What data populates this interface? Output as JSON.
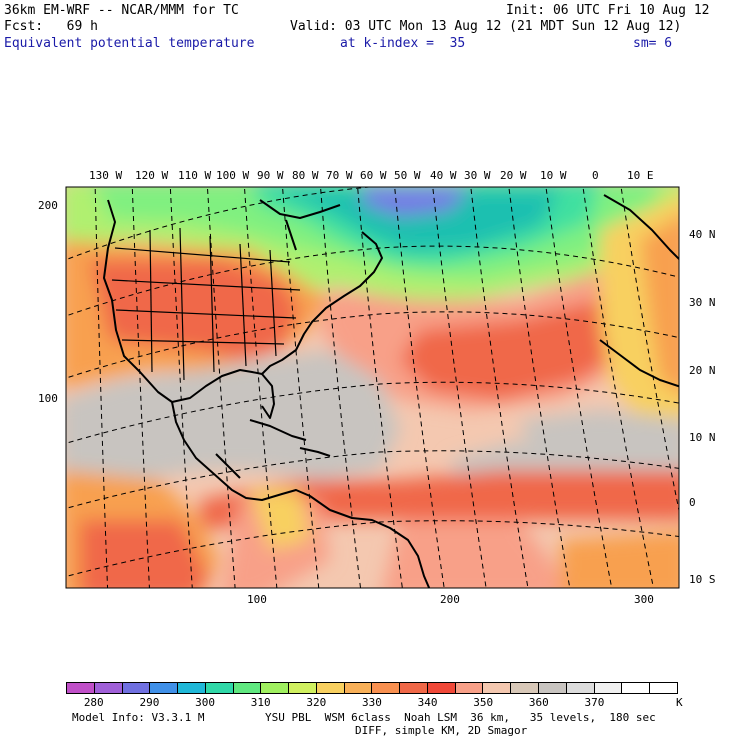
{
  "header": {
    "model": "36km EM-WRF -- NCAR/MMM for TC",
    "init": "Init: 06 UTC Fri 10 Aug 12",
    "fcst": "Fcst:   69 h",
    "valid": "Valid: 03 UTC Mon 13 Aug 12 (21 MDT Sun 12 Aug 12)",
    "field": "Equivalent potential temperature",
    "kindex": "at k-index =  35",
    "smooth": "sm= 6"
  },
  "map": {
    "lon_labels": [
      "130 W",
      "120 W",
      "110 W",
      "100 W",
      "90 W",
      "80 W",
      "70 W",
      "60 W",
      "50 W",
      "40 W",
      "30 W",
      "20 W",
      "10 W",
      "0",
      "10 E"
    ],
    "lat_labels": [
      "40 N",
      "30 N",
      "20 N",
      "10 N",
      "0",
      "10 S"
    ],
    "y_grid_labels": [
      "200",
      "100"
    ],
    "x_grid_labels": [
      "100",
      "200",
      "300"
    ],
    "colors": {
      "deep_teal": "#1fc0b0",
      "teal": "#3fe0a0",
      "green": "#80f080",
      "light_green": "#b0f070",
      "yellow": "#f8d060",
      "orange": "#f8a050",
      "red_orange": "#f06848",
      "salmon": "#f8a088",
      "peach": "#f4c8b0",
      "gray": "#c8c4c0",
      "blue_patch": "#7878e8"
    }
  },
  "colorbar": {
    "colors": [
      "#c050c8",
      "#a060d8",
      "#7070e0",
      "#4090e8",
      "#20b8d8",
      "#30d8a8",
      "#60e880",
      "#a0f060",
      "#d0f060",
      "#f8d060",
      "#f8b058",
      "#f89050",
      "#f06848",
      "#f04838",
      "#f8a088",
      "#f4c8b0",
      "#d8c8b8",
      "#c8c4c0",
      "#dcdcdc",
      "#f0f0f0",
      "#ffffff",
      "#ffffff"
    ],
    "labels": [
      "280",
      "290",
      "300",
      "310",
      "320",
      "330",
      "340",
      "350",
      "360",
      "370"
    ],
    "unit": "K"
  },
  "footer": {
    "model_info": "Model Info: V3.3.1 M",
    "physics": "YSU PBL  WSM 6class  Noah LSM  36 km,   35 levels,  180 sec",
    "diff": "DIFF, simple KM, 2D Smagor"
  }
}
